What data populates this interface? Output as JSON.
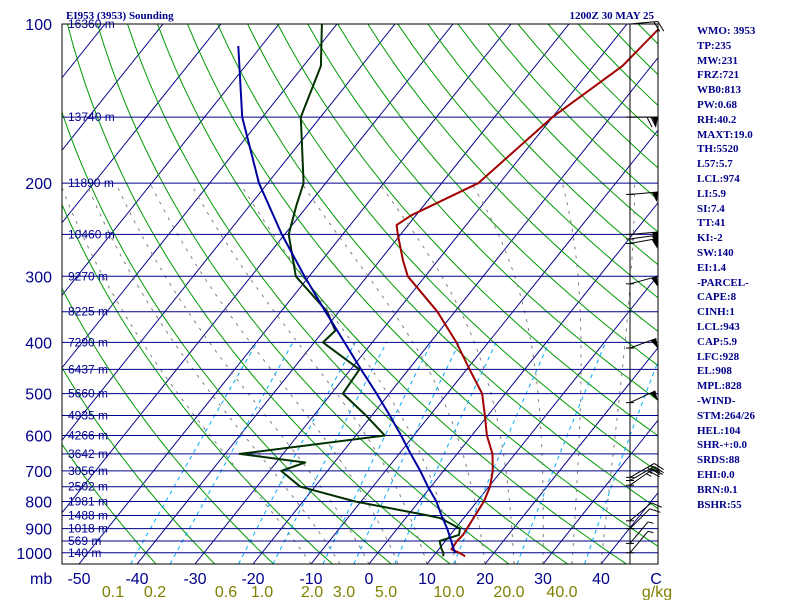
{
  "header": {
    "station_title": "EI953 (3953) Sounding",
    "valid_time": "1200Z 30 MAY 25"
  },
  "chart_data": {
    "type": "skew-t",
    "xlabel_unit": "C",
    "ylabel_unit": "mb",
    "mixing_ratio_unit": "g/kg",
    "pressure_ticks": [
      100,
      200,
      300,
      400,
      500,
      600,
      700,
      800,
      900,
      1000
    ],
    "temperature_ticks": [
      -50,
      -40,
      -30,
      -20,
      -10,
      0,
      10,
      20,
      30,
      40
    ],
    "mixing_ratio_ticks": [
      "0.1",
      "0.2",
      "0.6",
      "1.0",
      "2.0",
      "3.0",
      "5.0",
      "10.0",
      "20.0",
      "40.0"
    ],
    "height_labels": [
      {
        "p": 100,
        "label": "16360 m"
      },
      {
        "p": 150,
        "label": "13740 m"
      },
      {
        "p": 200,
        "label": "11890 m"
      },
      {
        "p": 250,
        "label": "10460 m"
      },
      {
        "p": 300,
        "label": "9270 m"
      },
      {
        "p": 350,
        "label": "8225 m"
      },
      {
        "p": 400,
        "label": "7290 m"
      },
      {
        "p": 450,
        "label": "6437 m"
      },
      {
        "p": 500,
        "label": "5660 m"
      },
      {
        "p": 550,
        "label": "4935 m"
      },
      {
        "p": 600,
        "label": "4266 m"
      },
      {
        "p": 650,
        "label": "3642 m"
      },
      {
        "p": 700,
        "label": "3056 m"
      },
      {
        "p": 750,
        "label": "2502 m"
      },
      {
        "p": 800,
        "label": "1981 m"
      },
      {
        "p": 850,
        "label": "1488 m"
      },
      {
        "p": 900,
        "label": "1018 m"
      },
      {
        "p": 950,
        "label": "569 m"
      },
      {
        "p": 1000,
        "label": "140 m"
      }
    ],
    "series": [
      {
        "color": "#a00000",
        "points": [
          {
            "p": 1015,
            "t": 15.5
          },
          {
            "p": 1000,
            "t": 14
          },
          {
            "p": 985,
            "t": 12.2
          },
          {
            "p": 950,
            "t": 12
          },
          {
            "p": 925,
            "t": 12.2
          },
          {
            "p": 900,
            "t": 12
          },
          {
            "p": 850,
            "t": 11.6
          },
          {
            "p": 800,
            "t": 11.2
          },
          {
            "p": 750,
            "t": 10.2
          },
          {
            "p": 700,
            "t": 8.5
          },
          {
            "p": 650,
            "t": 6.1
          },
          {
            "p": 600,
            "t": 2.6
          },
          {
            "p": 550,
            "t": -0.5
          },
          {
            "p": 500,
            "t": -4
          },
          {
            "p": 450,
            "t": -9.5
          },
          {
            "p": 400,
            "t": -15.5
          },
          {
            "p": 350,
            "t": -23
          },
          {
            "p": 300,
            "t": -33
          },
          {
            "p": 280,
            "t": -36
          },
          {
            "p": 250,
            "t": -40.5
          },
          {
            "p": 240,
            "t": -42
          },
          {
            "p": 230,
            "t": -40.8
          },
          {
            "p": 200,
            "t": -33.7
          },
          {
            "p": 150,
            "t": -30
          },
          {
            "p": 120,
            "t": -25
          },
          {
            "p": 100,
            "t": -23.7
          }
        ]
      },
      {
        "color": "#003000",
        "points": [
          {
            "p": 1015,
            "t": 11.7
          },
          {
            "p": 1000,
            "t": 11.3
          },
          {
            "p": 985,
            "t": 10.5
          },
          {
            "p": 950,
            "t": 9
          },
          {
            "p": 925,
            "t": 11.5
          },
          {
            "p": 900,
            "t": 10.8
          },
          {
            "p": 860,
            "t": 6
          },
          {
            "p": 850,
            "t": 3.5
          },
          {
            "p": 800,
            "t": -11
          },
          {
            "p": 750,
            "t": -22.5
          },
          {
            "p": 700,
            "t": -28
          },
          {
            "p": 675,
            "t": -25
          },
          {
            "p": 650,
            "t": -37.5
          },
          {
            "p": 600,
            "t": -15
          },
          {
            "p": 550,
            "t": -21
          },
          {
            "p": 500,
            "t": -28
          },
          {
            "p": 450,
            "t": -28.5
          },
          {
            "p": 400,
            "t": -38.5
          },
          {
            "p": 380,
            "t": -38
          },
          {
            "p": 350,
            "t": -42
          },
          {
            "p": 300,
            "t": -52.3
          },
          {
            "p": 250,
            "t": -59.3
          },
          {
            "p": 220,
            "t": -62
          },
          {
            "p": 200,
            "t": -63.8
          },
          {
            "p": 150,
            "t": -73.4
          },
          {
            "p": 120,
            "t": -77
          },
          {
            "p": 100,
            "t": -82.6
          }
        ]
      },
      {
        "color": "#0000a0",
        "points": [
          {
            "p": 1000,
            "t": 13.3
          },
          {
            "p": 985,
            "t": 12.6
          },
          {
            "p": 950,
            "t": 11
          },
          {
            "p": 900,
            "t": 8.6
          },
          {
            "p": 850,
            "t": 5.8
          },
          {
            "p": 800,
            "t": 3
          },
          {
            "p": 750,
            "t": -0.5
          },
          {
            "p": 700,
            "t": -4
          },
          {
            "p": 650,
            "t": -8
          },
          {
            "p": 600,
            "t": -12.2
          },
          {
            "p": 550,
            "t": -16.9
          },
          {
            "p": 500,
            "t": -22.2
          },
          {
            "p": 450,
            "t": -28.2
          },
          {
            "p": 400,
            "t": -34.8
          },
          {
            "p": 350,
            "t": -42.3
          },
          {
            "p": 300,
            "t": -50.8
          },
          {
            "p": 250,
            "t": -60.5
          },
          {
            "p": 200,
            "t": -71.5
          },
          {
            "p": 150,
            "t": -83.5
          },
          {
            "p": 110,
            "t": -94
          }
        ]
      }
    ],
    "wind_barbs": [
      {
        "p": 100,
        "dir": 265,
        "kt": 20
      },
      {
        "p": 150,
        "dir": 270,
        "kt": 70
      },
      {
        "p": 210,
        "dir": 265,
        "kt": 50
      },
      {
        "p": 250,
        "dir": 265,
        "kt": 50
      },
      {
        "p": 255,
        "dir": 262,
        "kt": 50
      },
      {
        "p": 260,
        "dir": 260,
        "kt": 50
      },
      {
        "p": 310,
        "dir": 255,
        "kt": 50
      },
      {
        "p": 410,
        "dir": 250,
        "kt": 50
      },
      {
        "p": 520,
        "dir": 245,
        "kt": 50
      },
      {
        "p": 720,
        "dir": 240,
        "kt": 25
      },
      {
        "p": 730,
        "dir": 240,
        "kt": 25
      },
      {
        "p": 745,
        "dir": 235,
        "kt": 25
      },
      {
        "p": 870,
        "dir": 230,
        "kt": 10
      },
      {
        "p": 900,
        "dir": 225,
        "kt": 10
      },
      {
        "p": 960,
        "dir": 220,
        "kt": 5
      },
      {
        "p": 1000,
        "dir": 220,
        "kt": 5
      }
    ]
  },
  "stats": [
    "WMO: 3953",
    "TP:235",
    "MW:231",
    "FRZ:721",
    "WB0:813",
    "PW:0.68",
    "RH:40.2",
    "MAXT:19.0",
    "TH:5520",
    "L57:5.7",
    "LCL:974",
    "LI:5.9",
    "SI:7.4",
    "TT:41",
    "KI:-2",
    "SW:140",
    "EI:1.4",
    "-PARCEL-",
    "CAPE:8",
    "CINH:1",
    "LCL:943",
    "CAP:5.9",
    "LFC:928",
    "EL:908",
    "MPL:828",
    "-WIND-",
    "STM:264/26",
    "HEL:104",
    "SHR-+:0.0",
    "SRDS:88",
    "EHI:0.0",
    "BRN:0.1",
    "BSHR:55"
  ],
  "colors": {
    "frame": "#000000",
    "isobar": "#00008b",
    "isotherm": "#00008b",
    "dry_adiabat": "#009a00",
    "moist_adiabat": "#808080",
    "mixing_ratio": "#00aaff",
    "text": "#00008b",
    "mixing_label": "#808000"
  }
}
